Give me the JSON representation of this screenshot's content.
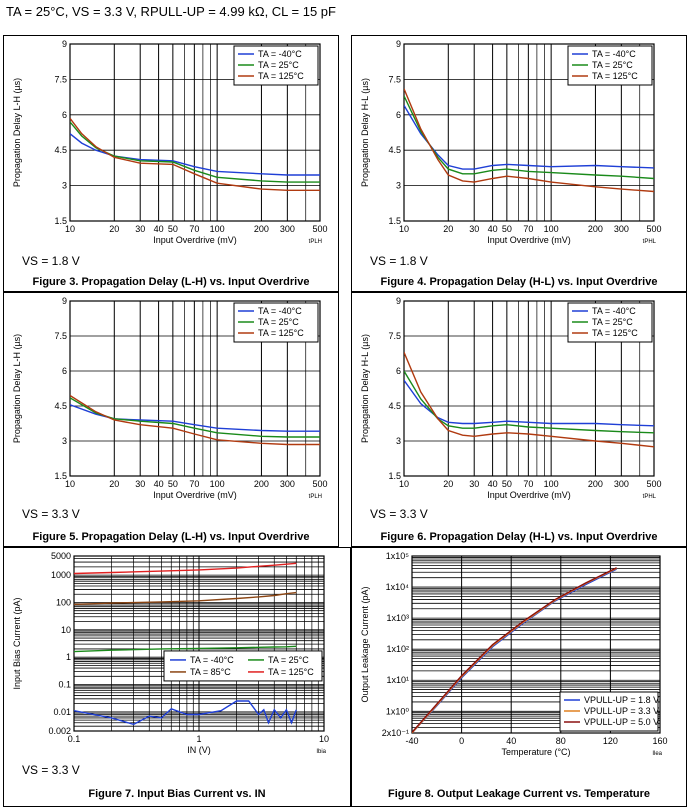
{
  "header": {
    "conditions": "TA = 25°C, VS = 3.3 V, RPULL-UP = 4.99 kΩ, CL = 15 pF"
  },
  "colors": {
    "series_minus40": "#1f3fd6",
    "series_25": "#1a8a1a",
    "series_85": "#8b4513",
    "series_125": "#b03a10",
    "series_125_red": "#e02020"
  },
  "chart_data": [
    {
      "id": "fig3",
      "type": "line",
      "title": "Figure 3. Propagation Delay (L-H) vs. Input Overdrive",
      "condition": "VS = 1.8 V",
      "xlabel": "Input Overdrive (mV)",
      "ylabel": "Propagation Delay L-H (µs)",
      "tag": "tPLH",
      "xscale": "log",
      "xlim": [
        10,
        500
      ],
      "ylim": [
        1.5,
        9
      ],
      "xticks": [
        10,
        20,
        30,
        40,
        50,
        70,
        100,
        200,
        300,
        500
      ],
      "xtick_labels": [
        "10",
        "20",
        "30",
        "40",
        "50",
        "70",
        "100",
        "200",
        "300",
        "500"
      ],
      "yticks": [
        1.5,
        3,
        4.5,
        6,
        7.5,
        9
      ],
      "ytick_labels": [
        "1.5",
        "3",
        "4.5",
        "6",
        "7.5",
        "9"
      ],
      "legend_position": "top-right",
      "series": [
        {
          "name": "TA = -40°C",
          "color": "#1f3fd6",
          "x": [
            10,
            12,
            15,
            20,
            30,
            50,
            70,
            100,
            200,
            300,
            500
          ],
          "y": [
            5.2,
            4.8,
            4.5,
            4.25,
            4.1,
            4.05,
            3.8,
            3.6,
            3.5,
            3.45,
            3.45
          ]
        },
        {
          "name": "TA = 25°C",
          "color": "#1a8a1a",
          "x": [
            10,
            12,
            15,
            20,
            30,
            50,
            70,
            100,
            200,
            300,
            500
          ],
          "y": [
            5.7,
            5.1,
            4.6,
            4.25,
            4.05,
            4.0,
            3.65,
            3.35,
            3.2,
            3.15,
            3.15
          ]
        },
        {
          "name": "TA = 125°C",
          "color": "#b03a10",
          "x": [
            10,
            12,
            15,
            20,
            30,
            50,
            70,
            100,
            200,
            300,
            500
          ],
          "y": [
            5.85,
            5.2,
            4.65,
            4.2,
            3.95,
            3.9,
            3.5,
            3.1,
            2.85,
            2.8,
            2.8
          ]
        }
      ]
    },
    {
      "id": "fig4",
      "type": "line",
      "title": "Figure 4. Propagation Delay (H-L) vs. Input Overdrive",
      "condition": "VS = 1.8 V",
      "xlabel": "Input Overdrive (mV)",
      "ylabel": "Propagation Delay H-L (µs)",
      "tag": "tPHL",
      "xscale": "log",
      "xlim": [
        10,
        500
      ],
      "ylim": [
        1.5,
        9
      ],
      "xticks": [
        10,
        20,
        30,
        40,
        50,
        70,
        100,
        200,
        300,
        500
      ],
      "xtick_labels": [
        "10",
        "20",
        "30",
        "40",
        "50",
        "70",
        "100",
        "200",
        "300",
        "500"
      ],
      "yticks": [
        1.5,
        3,
        4.5,
        6,
        7.5,
        9
      ],
      "ytick_labels": [
        "1.5",
        "3",
        "4.5",
        "6",
        "7.5",
        "9"
      ],
      "legend_position": "top-right",
      "series": [
        {
          "name": "TA = -40°C",
          "color": "#1f3fd6",
          "x": [
            10,
            13,
            17,
            20,
            25,
            30,
            40,
            50,
            70,
            100,
            200,
            300,
            500
          ],
          "y": [
            6.4,
            5.2,
            4.3,
            3.85,
            3.7,
            3.7,
            3.85,
            3.9,
            3.85,
            3.8,
            3.85,
            3.8,
            3.75
          ]
        },
        {
          "name": "TA = 25°C",
          "color": "#1a8a1a",
          "x": [
            10,
            13,
            17,
            20,
            25,
            30,
            40,
            50,
            70,
            100,
            200,
            300,
            500
          ],
          "y": [
            6.8,
            5.3,
            4.2,
            3.7,
            3.5,
            3.5,
            3.65,
            3.7,
            3.6,
            3.55,
            3.45,
            3.4,
            3.3
          ]
        },
        {
          "name": "TA = 125°C",
          "color": "#b03a10",
          "x": [
            10,
            13,
            17,
            20,
            25,
            30,
            40,
            50,
            70,
            100,
            200,
            300,
            500
          ],
          "y": [
            7.1,
            5.4,
            4.1,
            3.45,
            3.2,
            3.15,
            3.3,
            3.4,
            3.3,
            3.15,
            2.95,
            2.85,
            2.75
          ]
        }
      ]
    },
    {
      "id": "fig5",
      "type": "line",
      "title": "Figure 5. Propagation Delay (L-H) vs. Input Overdrive",
      "condition": "VS = 3.3 V",
      "xlabel": "Input Overdrive (mV)",
      "ylabel": "Propagation Delay L-H (µs)",
      "tag": "tPLH",
      "xscale": "log",
      "xlim": [
        10,
        500
      ],
      "ylim": [
        1.5,
        9
      ],
      "xticks": [
        10,
        20,
        30,
        40,
        50,
        70,
        100,
        200,
        300,
        500
      ],
      "xtick_labels": [
        "10",
        "20",
        "30",
        "40",
        "50",
        "70",
        "100",
        "200",
        "300",
        "500"
      ],
      "yticks": [
        1.5,
        3,
        4.5,
        6,
        7.5,
        9
      ],
      "ytick_labels": [
        "1.5",
        "3",
        "4.5",
        "6",
        "7.5",
        "9"
      ],
      "legend_position": "top-right",
      "series": [
        {
          "name": "TA = -40°C",
          "color": "#1f3fd6",
          "x": [
            10,
            15,
            20,
            30,
            50,
            70,
            100,
            200,
            300,
            500
          ],
          "y": [
            4.55,
            4.15,
            3.95,
            3.9,
            3.85,
            3.7,
            3.55,
            3.45,
            3.42,
            3.42
          ]
        },
        {
          "name": "TA = 25°C",
          "color": "#1a8a1a",
          "x": [
            10,
            15,
            20,
            30,
            50,
            70,
            100,
            200,
            300,
            500
          ],
          "y": [
            4.85,
            4.2,
            3.95,
            3.85,
            3.75,
            3.55,
            3.35,
            3.2,
            3.17,
            3.17
          ]
        },
        {
          "name": "TA = 125°C",
          "color": "#b03a10",
          "x": [
            10,
            15,
            20,
            30,
            50,
            70,
            100,
            200,
            300,
            500
          ],
          "y": [
            4.95,
            4.25,
            3.9,
            3.7,
            3.55,
            3.3,
            3.05,
            2.9,
            2.85,
            2.85
          ]
        }
      ]
    },
    {
      "id": "fig6",
      "type": "line",
      "title": "Figure 6. Propagation Delay (H-L) vs. Input Overdrive",
      "condition": "VS = 3.3 V",
      "xlabel": "Input Overdrive (mV)",
      "ylabel": "Propagation Delay H-L (µs)",
      "tag": "tPHL",
      "xscale": "log",
      "xlim": [
        10,
        500
      ],
      "ylim": [
        1.5,
        9
      ],
      "xticks": [
        10,
        20,
        30,
        40,
        50,
        70,
        100,
        200,
        300,
        500
      ],
      "xtick_labels": [
        "10",
        "20",
        "30",
        "40",
        "50",
        "70",
        "100",
        "200",
        "300",
        "500"
      ],
      "yticks": [
        1.5,
        3,
        4.5,
        6,
        7.5,
        9
      ],
      "ytick_labels": [
        "1.5",
        "3",
        "4.5",
        "6",
        "7.5",
        "9"
      ],
      "legend_position": "top-right",
      "series": [
        {
          "name": "TA = -40°C",
          "color": "#1f3fd6",
          "x": [
            10,
            13,
            17,
            20,
            25,
            30,
            40,
            50,
            70,
            100,
            200,
            300,
            500
          ],
          "y": [
            5.6,
            4.6,
            4.0,
            3.8,
            3.75,
            3.75,
            3.8,
            3.85,
            3.8,
            3.75,
            3.75,
            3.7,
            3.65
          ]
        },
        {
          "name": "TA = 25°C",
          "color": "#1a8a1a",
          "x": [
            10,
            13,
            17,
            20,
            25,
            30,
            40,
            50,
            70,
            100,
            200,
            300,
            500
          ],
          "y": [
            6.0,
            4.8,
            3.95,
            3.65,
            3.55,
            3.55,
            3.65,
            3.7,
            3.6,
            3.55,
            3.45,
            3.4,
            3.35
          ]
        },
        {
          "name": "TA = 125°C",
          "color": "#b03a10",
          "x": [
            10,
            13,
            17,
            20,
            25,
            30,
            40,
            50,
            70,
            100,
            200,
            300,
            500
          ],
          "y": [
            6.8,
            5.1,
            3.95,
            3.45,
            3.25,
            3.2,
            3.3,
            3.35,
            3.3,
            3.2,
            3.0,
            2.9,
            2.75
          ]
        }
      ]
    },
    {
      "id": "fig7",
      "type": "line",
      "title": "Figure 7. Input Bias Current vs. IN",
      "condition": "VS = 3.3 V",
      "xlabel": "IN (V)",
      "ylabel": "Input Bias Current (pA)",
      "tag": "Ibia",
      "xscale": "log",
      "yscale": "log",
      "xlim": [
        0.1,
        10
      ],
      "ylim": [
        0.002,
        5000
      ],
      "xticks": [
        0.1,
        1,
        10
      ],
      "xtick_labels": [
        "0.1",
        "1",
        "10"
      ],
      "yticks": [
        0.002,
        0.01,
        0.1,
        1,
        10,
        100,
        1000,
        5000
      ],
      "ytick_labels": [
        "0.002",
        "0.01",
        "0.1",
        "1",
        "10",
        "100",
        "1000",
        "5000"
      ],
      "legend_position": "center-right",
      "series": [
        {
          "name": "TA = -40°C",
          "color": "#1f3fd6",
          "x": [
            0.1,
            0.2,
            0.3,
            0.4,
            0.5,
            0.6,
            0.8,
            1.0,
            1.5,
            2.0,
            2.5,
            3.0,
            3.3,
            3.6,
            4.0,
            4.5,
            5.0,
            5.5,
            6.0
          ],
          "y": [
            0.011,
            0.006,
            0.0035,
            0.007,
            0.006,
            0.013,
            0.008,
            0.008,
            0.011,
            0.025,
            0.025,
            0.008,
            0.012,
            0.004,
            0.012,
            0.006,
            0.012,
            0.004,
            0.012
          ]
        },
        {
          "name": "TA = 25°C",
          "color": "#1a8a1a",
          "x": [
            0.1,
            0.2,
            0.5,
            1.0,
            2.0,
            3.0,
            4.0,
            5.0,
            6.0
          ],
          "y": [
            1.6,
            1.8,
            2.0,
            2.1,
            2.2,
            2.3,
            2.35,
            2.4,
            2.5
          ]
        },
        {
          "name": "TA = 85°C",
          "color": "#8b4513",
          "x": [
            0.1,
            0.2,
            0.5,
            1.0,
            2.0,
            3.0,
            4.0,
            5.0,
            6.0
          ],
          "y": [
            85,
            95,
            105,
            115,
            140,
            160,
            180,
            210,
            230
          ]
        },
        {
          "name": "TA = 125°C",
          "color": "#e02020",
          "x": [
            0.1,
            0.2,
            0.5,
            1.0,
            2.0,
            3.0,
            4.0,
            5.0,
            6.0
          ],
          "y": [
            1150,
            1250,
            1400,
            1550,
            1800,
            2100,
            2300,
            2500,
            2700
          ]
        }
      ]
    },
    {
      "id": "fig8",
      "type": "line",
      "title": "Figure 8. Output Leakage Current vs. Temperature",
      "condition": "",
      "xlabel": "Temperature (°C)",
      "ylabel": "Output Leakage Current (pA)",
      "tag": "Ilea",
      "yscale": "log",
      "xlim": [
        -40,
        160
      ],
      "ylim": [
        0.2,
        100000
      ],
      "xticks": [
        -40,
        0,
        40,
        80,
        120,
        160
      ],
      "xtick_labels": [
        "-40",
        "0",
        "40",
        "80",
        "120",
        "160"
      ],
      "yticks": [
        0.2,
        1,
        10,
        100,
        1000,
        10000,
        100000
      ],
      "ytick_labels": [
        "2x10⁻¹",
        "1x10⁰",
        "1x10¹",
        "1x10²",
        "1x10³",
        "1x10⁴",
        "1x10⁵"
      ],
      "legend_position": "bottom-right",
      "series": [
        {
          "name": "VPULL-UP = 1.8 V",
          "color": "#1f3fd6",
          "x": [
            -40,
            -20,
            0,
            25,
            50,
            75,
            100,
            125
          ],
          "y": [
            0.2,
            1.5,
            12,
            120,
            700,
            3500,
            12000,
            38000
          ]
        },
        {
          "name": "VPULL-UP = 3.3 V",
          "color": "#e08020",
          "x": [
            -40,
            -20,
            0,
            25,
            50,
            75,
            100,
            125
          ],
          "y": [
            0.2,
            1.6,
            13,
            130,
            750,
            3700,
            13000,
            40000
          ]
        },
        {
          "name": "VPULL-UP = 5.0 V",
          "color": "#8b1010",
          "x": [
            -40,
            -20,
            0,
            25,
            50,
            75,
            100,
            125
          ],
          "y": [
            0.21,
            1.7,
            14,
            140,
            800,
            3900,
            13500,
            42000
          ]
        }
      ]
    }
  ]
}
